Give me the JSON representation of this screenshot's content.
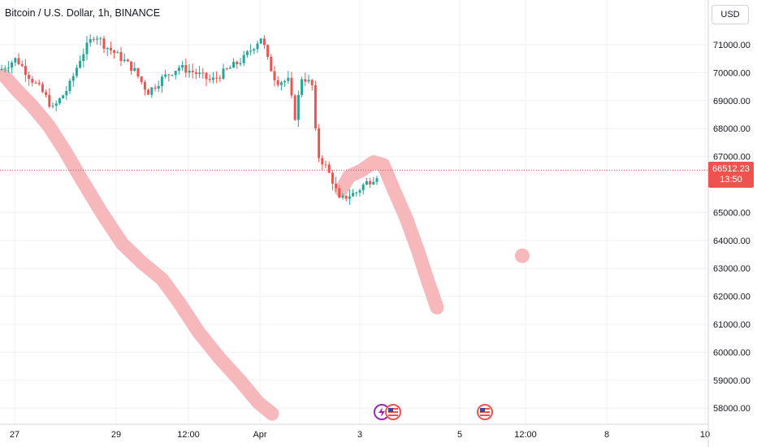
{
  "title": "Bitcoin / U.S. Dollar, 1h, BINANCE",
  "currency_button": "USD",
  "price_tag": {
    "value": "66512.23",
    "countdown": "13:50",
    "color": "#ef5350"
  },
  "icons": [
    "lightning-event-icon",
    "us-flag-event-icon",
    "us-flag-event-icon"
  ],
  "colors": {
    "up": "#26a69a",
    "down": "#ef5350",
    "drawing": "#f7b8bc",
    "grid": "#eef0f3"
  },
  "chart_data": {
    "type": "candlestick",
    "title": "Bitcoin / U.S. Dollar, 1h, BINANCE",
    "ylim": [
      57500,
      72700
    ],
    "y_ticks": [
      "71000.00",
      "70000.00",
      "69000.00",
      "68000.00",
      "67000.00",
      "65000.00",
      "64000.00",
      "63000.00",
      "62000.00",
      "61000.00",
      "60000.00",
      "59000.00",
      "58000.00"
    ],
    "x_ticks": [
      "27",
      "29",
      "12:00",
      "Apr",
      "3",
      "5",
      "12:00",
      "8",
      "10"
    ],
    "last_price": 66512.23,
    "close_path": [
      [
        0,
        70100
      ],
      [
        20,
        70500
      ],
      [
        38,
        69800
      ],
      [
        55,
        69200
      ],
      [
        65,
        68700
      ],
      [
        75,
        69100
      ],
      [
        85,
        69500
      ],
      [
        100,
        70600
      ],
      [
        117,
        71400
      ],
      [
        128,
        71000
      ],
      [
        150,
        70500
      ],
      [
        165,
        70100
      ],
      [
        182,
        69300
      ],
      [
        200,
        69800
      ],
      [
        220,
        70200
      ],
      [
        240,
        70000
      ],
      [
        260,
        69700
      ],
      [
        280,
        70100
      ],
      [
        300,
        70500
      ],
      [
        322,
        71300
      ],
      [
        330,
        70400
      ],
      [
        340,
        69700
      ],
      [
        355,
        69700
      ],
      [
        363,
        68400
      ],
      [
        372,
        69900
      ],
      [
        385,
        69500
      ],
      [
        390,
        67100
      ],
      [
        400,
        66700
      ],
      [
        410,
        66100
      ],
      [
        418,
        65400
      ],
      [
        428,
        65600
      ],
      [
        438,
        65700
      ],
      [
        448,
        66000
      ],
      [
        458,
        66200
      ],
      [
        470,
        66500
      ]
    ],
    "drawings": [
      {
        "type": "brush",
        "points": [
          [
            5,
            69900
          ],
          [
            20,
            69400
          ],
          [
            40,
            68800
          ],
          [
            60,
            68100
          ],
          [
            80,
            67200
          ],
          [
            100,
            66200
          ],
          [
            125,
            65000
          ],
          [
            150,
            63900
          ],
          [
            175,
            63200
          ],
          [
            200,
            62600
          ],
          [
            220,
            61800
          ],
          [
            245,
            60700
          ],
          [
            270,
            59800
          ],
          [
            295,
            59000
          ],
          [
            318,
            58200
          ],
          [
            335,
            57800
          ]
        ]
      },
      {
        "type": "brush",
        "points": [
          [
            420,
            65800
          ],
          [
            430,
            66300
          ],
          [
            445,
            66500
          ],
          [
            460,
            66800
          ],
          [
            472,
            66700
          ],
          [
            485,
            65800
          ],
          [
            500,
            64800
          ],
          [
            515,
            63600
          ],
          [
            525,
            62700
          ],
          [
            538,
            61600
          ]
        ]
      },
      {
        "type": "dot",
        "points": [
          [
            643,
            63450
          ]
        ]
      }
    ]
  }
}
